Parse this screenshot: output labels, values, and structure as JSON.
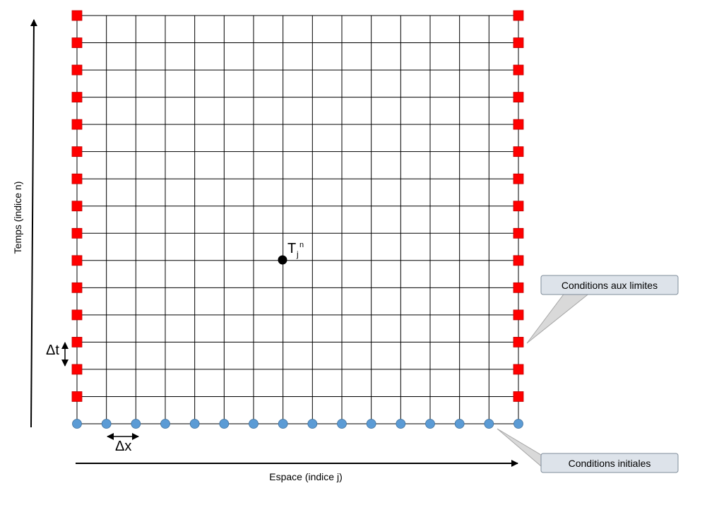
{
  "diagram": {
    "colors": {
      "grid_line": "#000000",
      "boundary_marker": "#ff0000",
      "initial_marker": "#5b9bd5",
      "point_marker": "#000000",
      "callout_fill": "#d9d9d9",
      "callout_box_fill": "#dde3ea",
      "callout_border": "#7f8c9a"
    },
    "axes": {
      "time_label": "Temps (indice n)",
      "space_label": "Espace (indice j)"
    },
    "grid_point": {
      "symbol": "T",
      "subscript": "j",
      "superscript": "n"
    },
    "steps": {
      "dt_label": "Δt",
      "dx_label": "Δx"
    },
    "callouts": {
      "boundary": "Conditions aux limites",
      "initial": "Conditions initiales"
    }
  }
}
